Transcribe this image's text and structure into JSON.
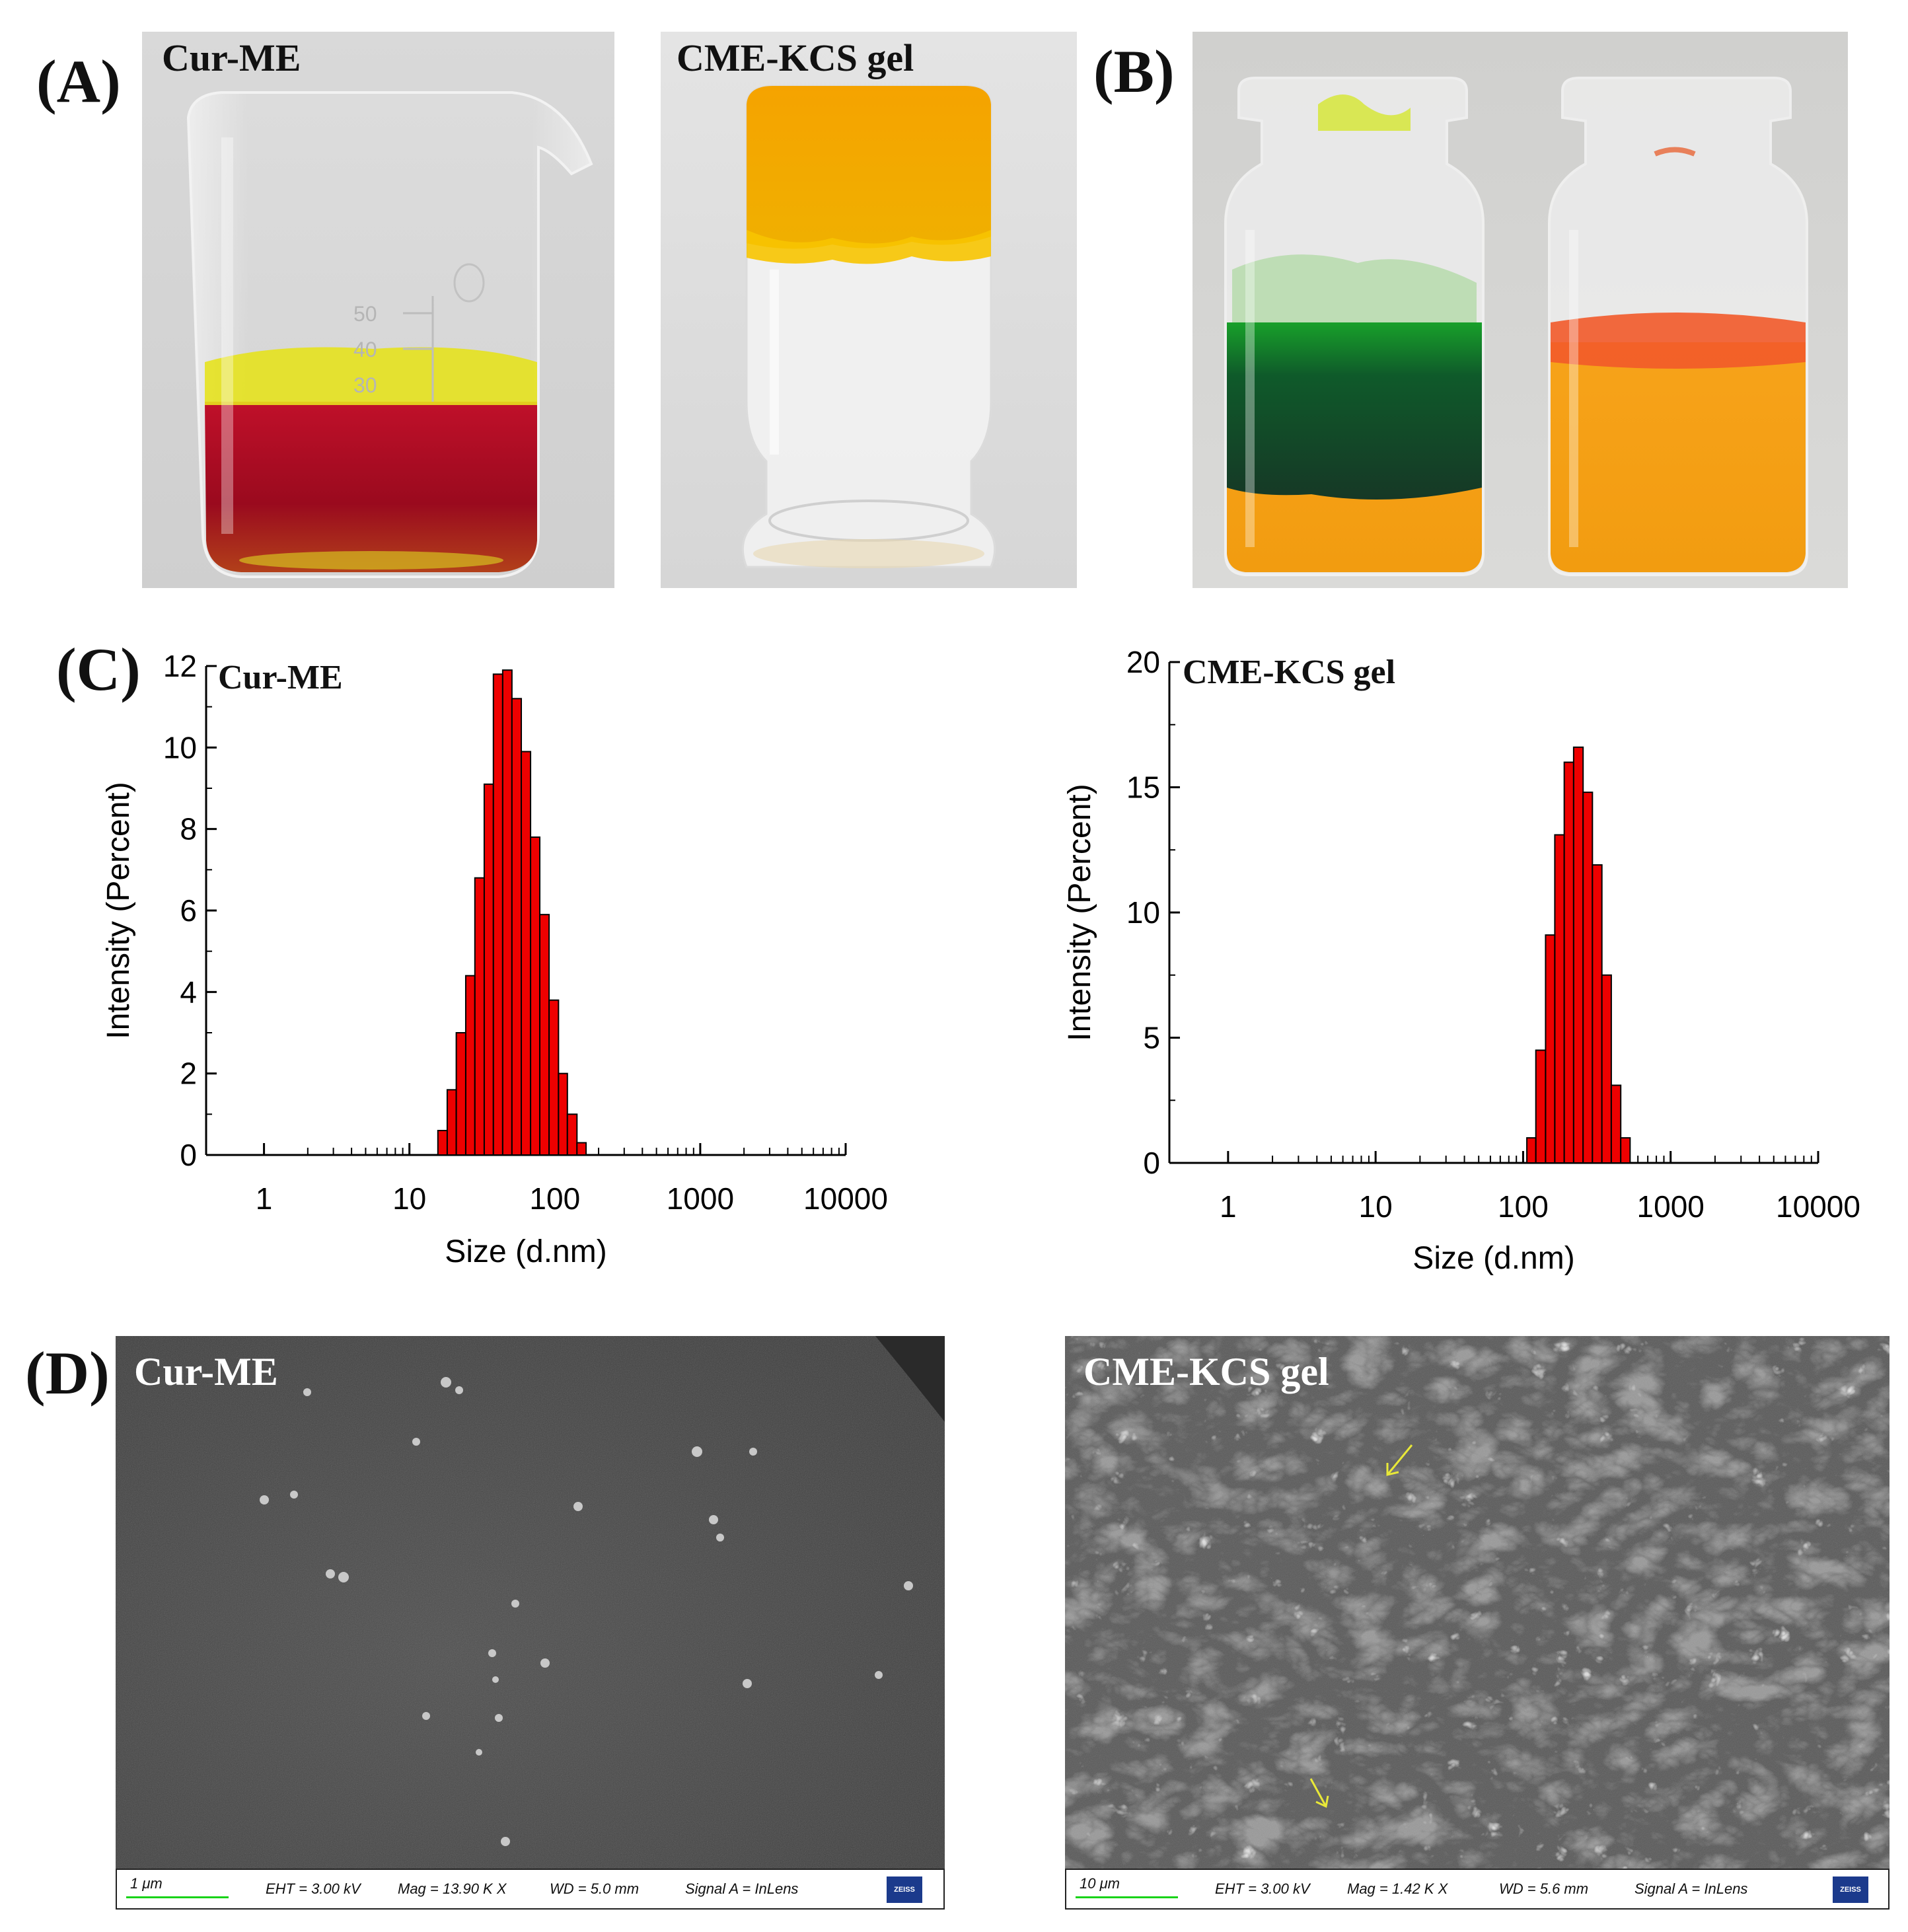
{
  "panels": {
    "A": {
      "letter": "(A)",
      "photo1_title": "Cur-ME",
      "photo2_title": "CME-KCS gel",
      "beaker_marks": [
        "50",
        "40",
        "30"
      ]
    },
    "B": {
      "letter": "(B)"
    },
    "C": {
      "letter": "(C)"
    },
    "D": {
      "letter": "(D)",
      "sem1": {
        "title": "Cur-ME",
        "scale": "1 μm",
        "eht": "EHT =  3.00 kV",
        "mag": "Mag =   13.90 K X",
        "wd": "WD =  5.0 mm",
        "signal": "Signal A = InLens",
        "logo": "ZEISS"
      },
      "sem2": {
        "title": "CME-KCS gel",
        "scale": "10 μm",
        "eht": "EHT =  3.00 kV",
        "mag": "Mag =   1.42 K X",
        "wd": "WD =  5.6 mm",
        "signal": "Signal A = InLens",
        "logo": "ZEISS"
      }
    }
  },
  "colors": {
    "bar_fill": "#ee0000",
    "bar_stroke": "#000000"
  },
  "chart_data": [
    {
      "type": "bar",
      "title": "Cur-ME",
      "xlabel": "Size (d.nm)",
      "ylabel": "Intensity (Percent)",
      "xscale": "log",
      "xlim": [
        0.4,
        10000
      ],
      "ylim": [
        0,
        12
      ],
      "yticks": [
        "0",
        "2",
        "4",
        "6",
        "8",
        "10",
        "12"
      ],
      "xticks": [
        "1",
        "10",
        "100",
        "1000",
        "10000"
      ],
      "bins": [
        {
          "from": 15.7,
          "to": 18.2,
          "value": 0.6
        },
        {
          "from": 18.2,
          "to": 21.0,
          "value": 1.6
        },
        {
          "from": 21.0,
          "to": 24.4,
          "value": 3.0
        },
        {
          "from": 24.4,
          "to": 28.2,
          "value": 4.4
        },
        {
          "from": 28.2,
          "to": 32.7,
          "value": 6.8
        },
        {
          "from": 32.7,
          "to": 37.8,
          "value": 9.1
        },
        {
          "from": 37.8,
          "to": 43.8,
          "value": 11.8
        },
        {
          "from": 43.8,
          "to": 50.7,
          "value": 11.9
        },
        {
          "from": 50.7,
          "to": 58.8,
          "value": 11.2
        },
        {
          "from": 58.8,
          "to": 68.1,
          "value": 9.9
        },
        {
          "from": 68.1,
          "to": 78.8,
          "value": 7.8
        },
        {
          "from": 78.8,
          "to": 91.3,
          "value": 5.9
        },
        {
          "from": 91.3,
          "to": 106.0,
          "value": 3.8
        },
        {
          "from": 106.0,
          "to": 122.0,
          "value": 2.0
        },
        {
          "from": 122.0,
          "to": 142.0,
          "value": 1.0
        },
        {
          "from": 142.0,
          "to": 164.0,
          "value": 0.3
        }
      ]
    },
    {
      "type": "bar",
      "title": "CME-KCS gel",
      "xlabel": "Size (d.nm)",
      "ylabel": "Intensity (Percent)",
      "xscale": "log",
      "xlim": [
        0.4,
        10000
      ],
      "ylim": [
        0,
        20
      ],
      "yticks": [
        "0",
        "5",
        "10",
        "15",
        "20"
      ],
      "xticks": [
        "1",
        "10",
        "100",
        "1000",
        "10000"
      ],
      "bins": [
        {
          "from": 106.0,
          "to": 122.0,
          "value": 1.0
        },
        {
          "from": 122.0,
          "to": 142.0,
          "value": 4.5
        },
        {
          "from": 142.0,
          "to": 164.0,
          "value": 9.1
        },
        {
          "from": 164.0,
          "to": 190.0,
          "value": 13.1
        },
        {
          "from": 190.0,
          "to": 220.0,
          "value": 16.0
        },
        {
          "from": 220.0,
          "to": 255.0,
          "value": 16.6
        },
        {
          "from": 255.0,
          "to": 295.0,
          "value": 14.8
        },
        {
          "from": 295.0,
          "to": 342.0,
          "value": 11.9
        },
        {
          "from": 342.0,
          "to": 396.0,
          "value": 7.5
        },
        {
          "from": 396.0,
          "to": 459.0,
          "value": 3.1
        },
        {
          "from": 459.0,
          "to": 531.0,
          "value": 1.0
        }
      ]
    }
  ]
}
